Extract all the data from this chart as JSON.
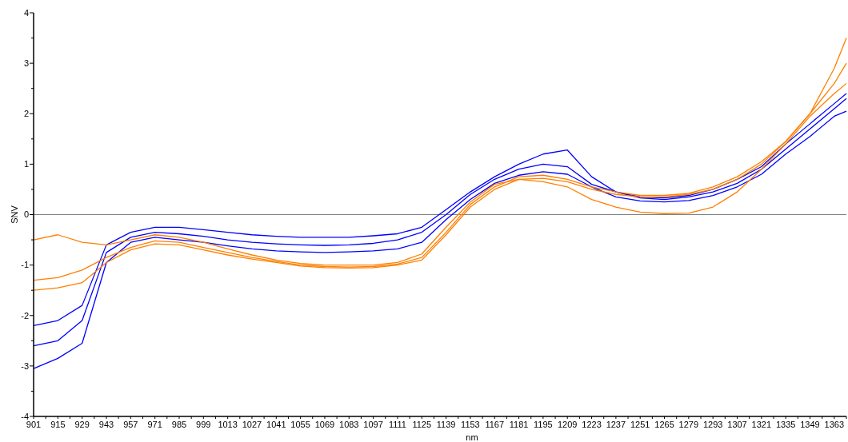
{
  "chart_data": {
    "type": "line",
    "xlabel": "nm",
    "ylabel": "SNV",
    "x": [
      901,
      915,
      929,
      943,
      957,
      971,
      985,
      999,
      1013,
      1027,
      1041,
      1055,
      1069,
      1083,
      1097,
      1111,
      1125,
      1139,
      1153,
      1167,
      1181,
      1195,
      1209,
      1223,
      1237,
      1251,
      1265,
      1279,
      1293,
      1307,
      1321,
      1335,
      1349,
      1363,
      1370
    ],
    "series": [
      {
        "color": "#0000ff",
        "values": [
          -2.2,
          -2.1,
          -1.8,
          -0.6,
          -0.35,
          -0.25,
          -0.25,
          -0.3,
          -0.35,
          -0.4,
          -0.43,
          -0.45,
          -0.45,
          -0.45,
          -0.42,
          -0.38,
          -0.25,
          0.1,
          0.45,
          0.75,
          1.0,
          1.2,
          1.28,
          0.75,
          0.45,
          0.35,
          0.33,
          0.38,
          0.5,
          0.7,
          0.95,
          1.4,
          1.8,
          2.2,
          2.4
        ]
      },
      {
        "color": "#0000ff",
        "values": [
          -2.6,
          -2.5,
          -2.1,
          -0.75,
          -0.45,
          -0.35,
          -0.38,
          -0.43,
          -0.5,
          -0.55,
          -0.58,
          -0.6,
          -0.61,
          -0.6,
          -0.57,
          -0.5,
          -0.35,
          0.0,
          0.4,
          0.7,
          0.9,
          1.0,
          0.95,
          0.6,
          0.45,
          0.33,
          0.3,
          0.35,
          0.45,
          0.62,
          0.9,
          1.3,
          1.7,
          2.1,
          2.3
        ]
      },
      {
        "color": "#0000ff",
        "values": [
          -3.05,
          -2.85,
          -2.55,
          -0.95,
          -0.55,
          -0.45,
          -0.5,
          -0.55,
          -0.62,
          -0.68,
          -0.72,
          -0.74,
          -0.75,
          -0.74,
          -0.72,
          -0.68,
          -0.55,
          -0.1,
          0.3,
          0.62,
          0.78,
          0.85,
          0.8,
          0.55,
          0.35,
          0.27,
          0.25,
          0.28,
          0.38,
          0.55,
          0.8,
          1.2,
          1.55,
          1.95,
          2.05
        ]
      },
      {
        "color": "#ff7f00",
        "values": [
          -0.5,
          -0.4,
          -0.55,
          -0.6,
          -0.5,
          -0.4,
          -0.45,
          -0.55,
          -0.68,
          -0.8,
          -0.9,
          -0.97,
          -1.0,
          -1.0,
          -1.0,
          -0.95,
          -0.78,
          -0.25,
          0.25,
          0.6,
          0.7,
          0.65,
          0.55,
          0.3,
          0.15,
          0.05,
          0.02,
          0.03,
          0.15,
          0.45,
          0.9,
          1.4,
          1.95,
          2.4,
          2.6
        ]
      },
      {
        "color": "#ff7f00",
        "values": [
          -1.3,
          -1.25,
          -1.1,
          -0.85,
          -0.65,
          -0.52,
          -0.55,
          -0.65,
          -0.75,
          -0.85,
          -0.93,
          -1.0,
          -1.03,
          -1.04,
          -1.03,
          -0.98,
          -0.85,
          -0.35,
          0.2,
          0.55,
          0.75,
          0.78,
          0.7,
          0.55,
          0.45,
          0.38,
          0.38,
          0.42,
          0.55,
          0.75,
          1.05,
          1.45,
          2.0,
          2.9,
          3.5
        ]
      },
      {
        "color": "#ff7f00",
        "values": [
          -1.5,
          -1.45,
          -1.35,
          -0.95,
          -0.7,
          -0.58,
          -0.6,
          -0.7,
          -0.8,
          -0.88,
          -0.95,
          -1.02,
          -1.05,
          -1.06,
          -1.05,
          -1.0,
          -0.9,
          -0.4,
          0.15,
          0.5,
          0.7,
          0.72,
          0.65,
          0.5,
          0.4,
          0.35,
          0.35,
          0.4,
          0.5,
          0.7,
          1.0,
          1.45,
          2.0,
          2.6,
          3.0
        ]
      }
    ],
    "xlim": [
      901,
      1370
    ],
    "xticks": [
      901,
      {
        "value": 908,
        "label": null
      },
      915,
      {
        "value": 922,
        "label": null
      },
      929,
      {
        "value": 936,
        "label": null
      },
      943,
      {
        "value": 950,
        "label": null
      },
      957,
      {
        "value": 964,
        "label": null
      },
      971,
      {
        "value": 978,
        "label": null
      },
      985,
      {
        "value": 992,
        "label": null
      },
      999,
      {
        "value": 1006,
        "label": null
      },
      1013,
      {
        "value": 1020,
        "label": null
      },
      1027,
      {
        "value": 1034,
        "label": null
      },
      1041,
      {
        "value": 1048,
        "label": null
      },
      1055,
      {
        "value": 1062,
        "label": null
      },
      1069,
      {
        "value": 1076,
        "label": null
      },
      1083,
      {
        "value": 1090,
        "label": null
      },
      1097,
      {
        "value": 1104,
        "label": null
      },
      1111,
      {
        "value": 1118,
        "label": null
      },
      1125,
      {
        "value": 1132,
        "label": null
      },
      1139,
      {
        "value": 1146,
        "label": null
      },
      1153,
      {
        "value": 1160,
        "label": null
      },
      1167,
      {
        "value": 1174,
        "label": null
      },
      1181,
      {
        "value": 1188,
        "label": null
      },
      1195,
      {
        "value": 1202,
        "label": null
      },
      1209,
      {
        "value": 1216,
        "label": null
      },
      1223,
      {
        "value": 1230,
        "label": null
      },
      1237,
      {
        "value": 1244,
        "label": null
      },
      1251,
      {
        "value": 1258,
        "label": null
      },
      1265,
      {
        "value": 1272,
        "label": null
      },
      1279,
      {
        "value": 1286,
        "label": null
      },
      1293,
      {
        "value": 1300,
        "label": null
      },
      1307,
      {
        "value": 1314,
        "label": null
      },
      1321,
      {
        "value": 1328,
        "label": null
      },
      1335,
      {
        "value": 1342,
        "label": null
      },
      1349,
      {
        "value": 1356,
        "label": null
      },
      1363,
      {
        "value": 1370,
        "label": null
      }
    ],
    "ylim": [
      -4,
      4
    ],
    "yticks": [
      -4,
      {
        "value": -3.5,
        "label": null
      },
      -3,
      {
        "value": -2.5,
        "label": null
      },
      -2,
      {
        "value": -1.5,
        "label": null
      },
      -1,
      {
        "value": -0.5,
        "label": null
      },
      0,
      {
        "value": 0.5,
        "label": null
      },
      1,
      {
        "value": 1.5,
        "label": null
      },
      2,
      {
        "value": 2.5,
        "label": null
      },
      3,
      {
        "value": 3.5,
        "label": null
      },
      4
    ],
    "ref_lines": [
      {
        "axis": "y",
        "value": 0,
        "color": "#808080"
      }
    ],
    "grid": false,
    "marker": "none",
    "line_style": "solid"
  }
}
